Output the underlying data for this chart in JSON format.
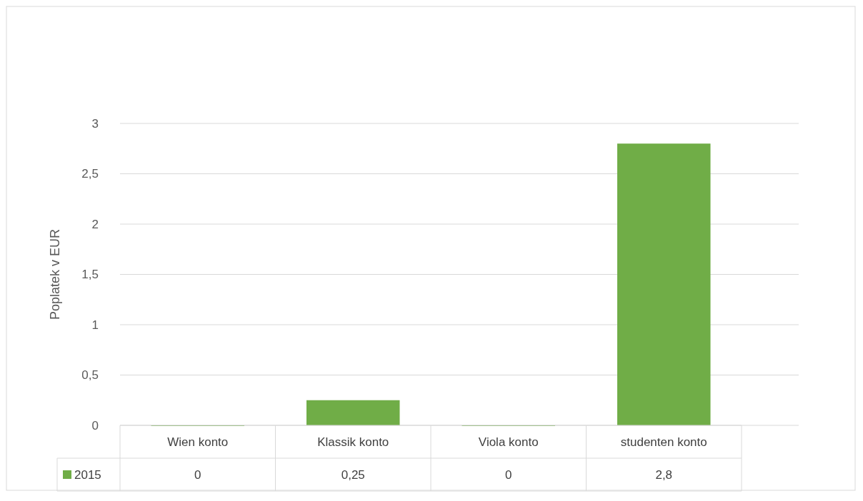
{
  "chart_data": {
    "type": "bar",
    "ylabel": "Poplatek v EUR",
    "categories": [
      "Wien konto",
      "Klassik konto",
      "Viola konto",
      "studenten konto"
    ],
    "series": [
      {
        "name": "2015",
        "color": "#70ad47",
        "values": [
          0,
          0.25,
          0,
          2.8
        ],
        "value_labels": [
          "0",
          "0,25",
          "0",
          "2,8"
        ]
      }
    ],
    "ylim": [
      0,
      3
    ],
    "yticks": [
      0,
      {
        "value": 0.5,
        "label": "0,5"
      },
      1,
      {
        "value": 1.5,
        "label": "1,5"
      },
      2,
      {
        "value": 2.5,
        "label": "2,5"
      },
      3
    ],
    "grid": "y",
    "legend": "bottom"
  }
}
